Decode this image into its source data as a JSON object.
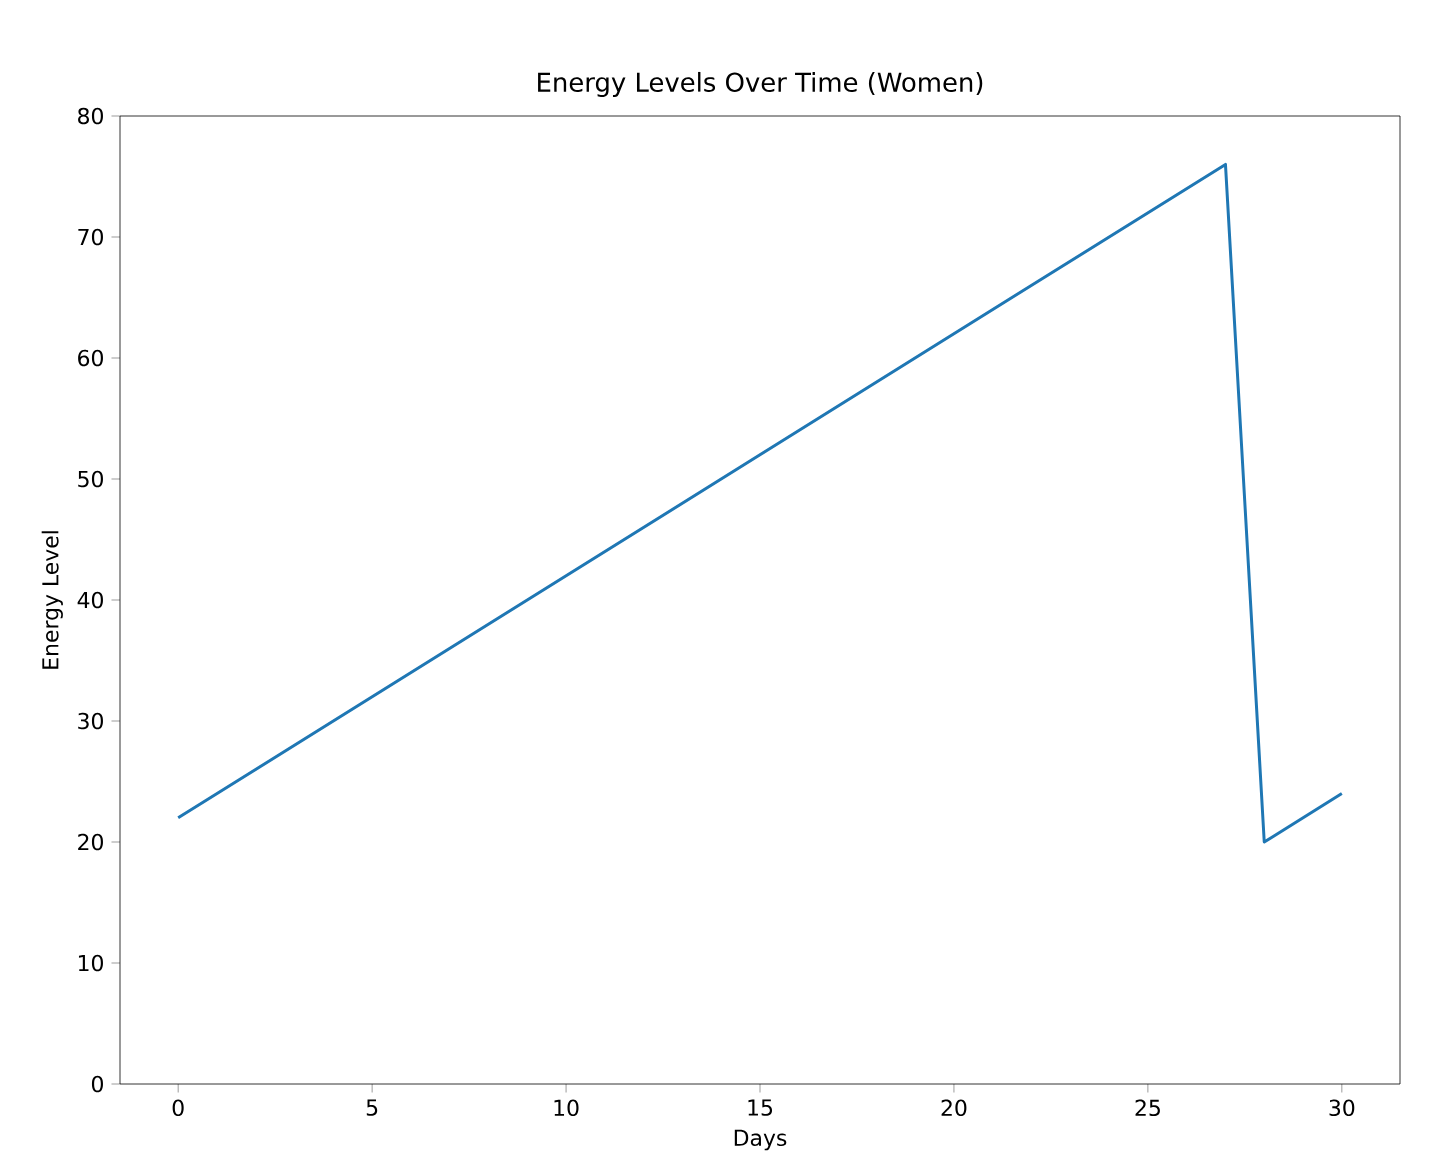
{
  "chart_data": {
    "type": "line",
    "title": "Energy Levels Over Time (Women)",
    "xlabel": "Days",
    "ylabel": "Energy Level",
    "x": [
      0,
      27,
      28,
      30
    ],
    "series": [
      {
        "color": "#1f77b4",
        "values": [
          22,
          76,
          20,
          24
        ]
      }
    ],
    "xlim": [
      -1.5,
      31.5
    ],
    "ylim": [
      0,
      80
    ],
    "xticks": [
      0,
      5,
      10,
      15,
      20,
      25,
      30
    ],
    "yticks": [
      0,
      10,
      20,
      30,
      40,
      50,
      60,
      70,
      80
    ],
    "grid": false,
    "marker": "none",
    "line_style": "solid"
  }
}
